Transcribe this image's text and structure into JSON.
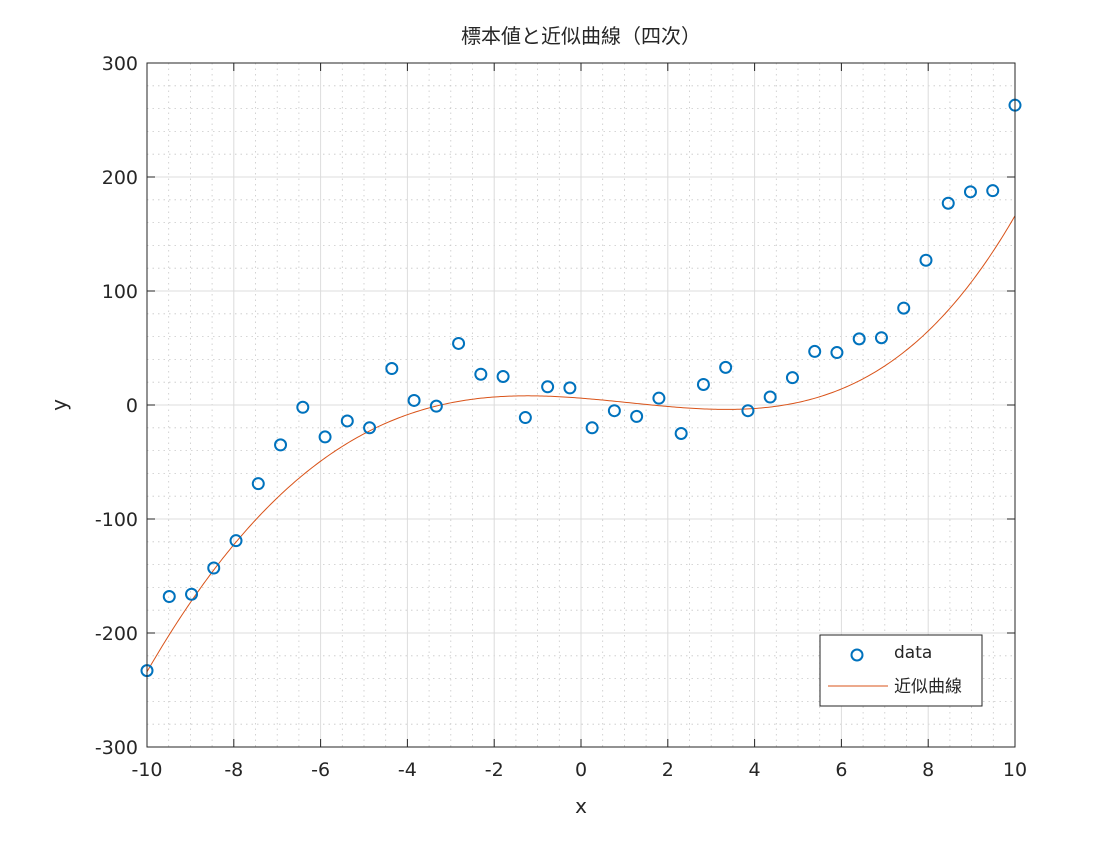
{
  "chart_data": {
    "type": "scatter",
    "title": "標本値と近似曲線（四次）",
    "xlabel": "x",
    "ylabel": "y",
    "xlim": [
      -10,
      10
    ],
    "ylim": [
      -300,
      300
    ],
    "xticks": [
      -10,
      -8,
      -6,
      -4,
      -2,
      0,
      2,
      4,
      6,
      8,
      10
    ],
    "yticks": [
      -300,
      -200,
      -100,
      0,
      100,
      200,
      300
    ],
    "grid": true,
    "minor_grid": true,
    "legend": "bottom-right",
    "series": [
      {
        "name": "data",
        "kind": "scatter",
        "marker": "circle",
        "color": "#0072BD",
        "x": [
          -10,
          -9.487,
          -8.974,
          -8.462,
          -7.949,
          -7.436,
          -6.923,
          -6.41,
          -5.897,
          -5.385,
          -4.872,
          -4.359,
          -3.846,
          -3.333,
          -2.821,
          -2.308,
          -1.795,
          -1.282,
          -0.769,
          -0.256,
          0.256,
          0.769,
          1.282,
          1.795,
          2.308,
          2.821,
          3.333,
          3.846,
          4.359,
          4.872,
          5.385,
          5.897,
          6.41,
          6.923,
          7.436,
          7.949,
          8.462,
          8.974,
          9.487,
          10
        ],
        "y": [
          -233,
          -168,
          -166,
          -143,
          -119,
          -69,
          -35,
          -2,
          -28,
          -14,
          -20,
          32,
          4,
          -1,
          54,
          27,
          25,
          -11,
          16,
          15,
          -20,
          -5,
          -10,
          6,
          -25,
          18,
          33,
          -5,
          7,
          24,
          47,
          46,
          58,
          59,
          85,
          127,
          177,
          187,
          188,
          263
        ]
      },
      {
        "name": "近似曲線",
        "kind": "line",
        "color": "#D95319",
        "coefficients_ascending": [
          6.0,
          -3.0,
          -0.8,
          0.23,
          0.004
        ]
      }
    ]
  }
}
